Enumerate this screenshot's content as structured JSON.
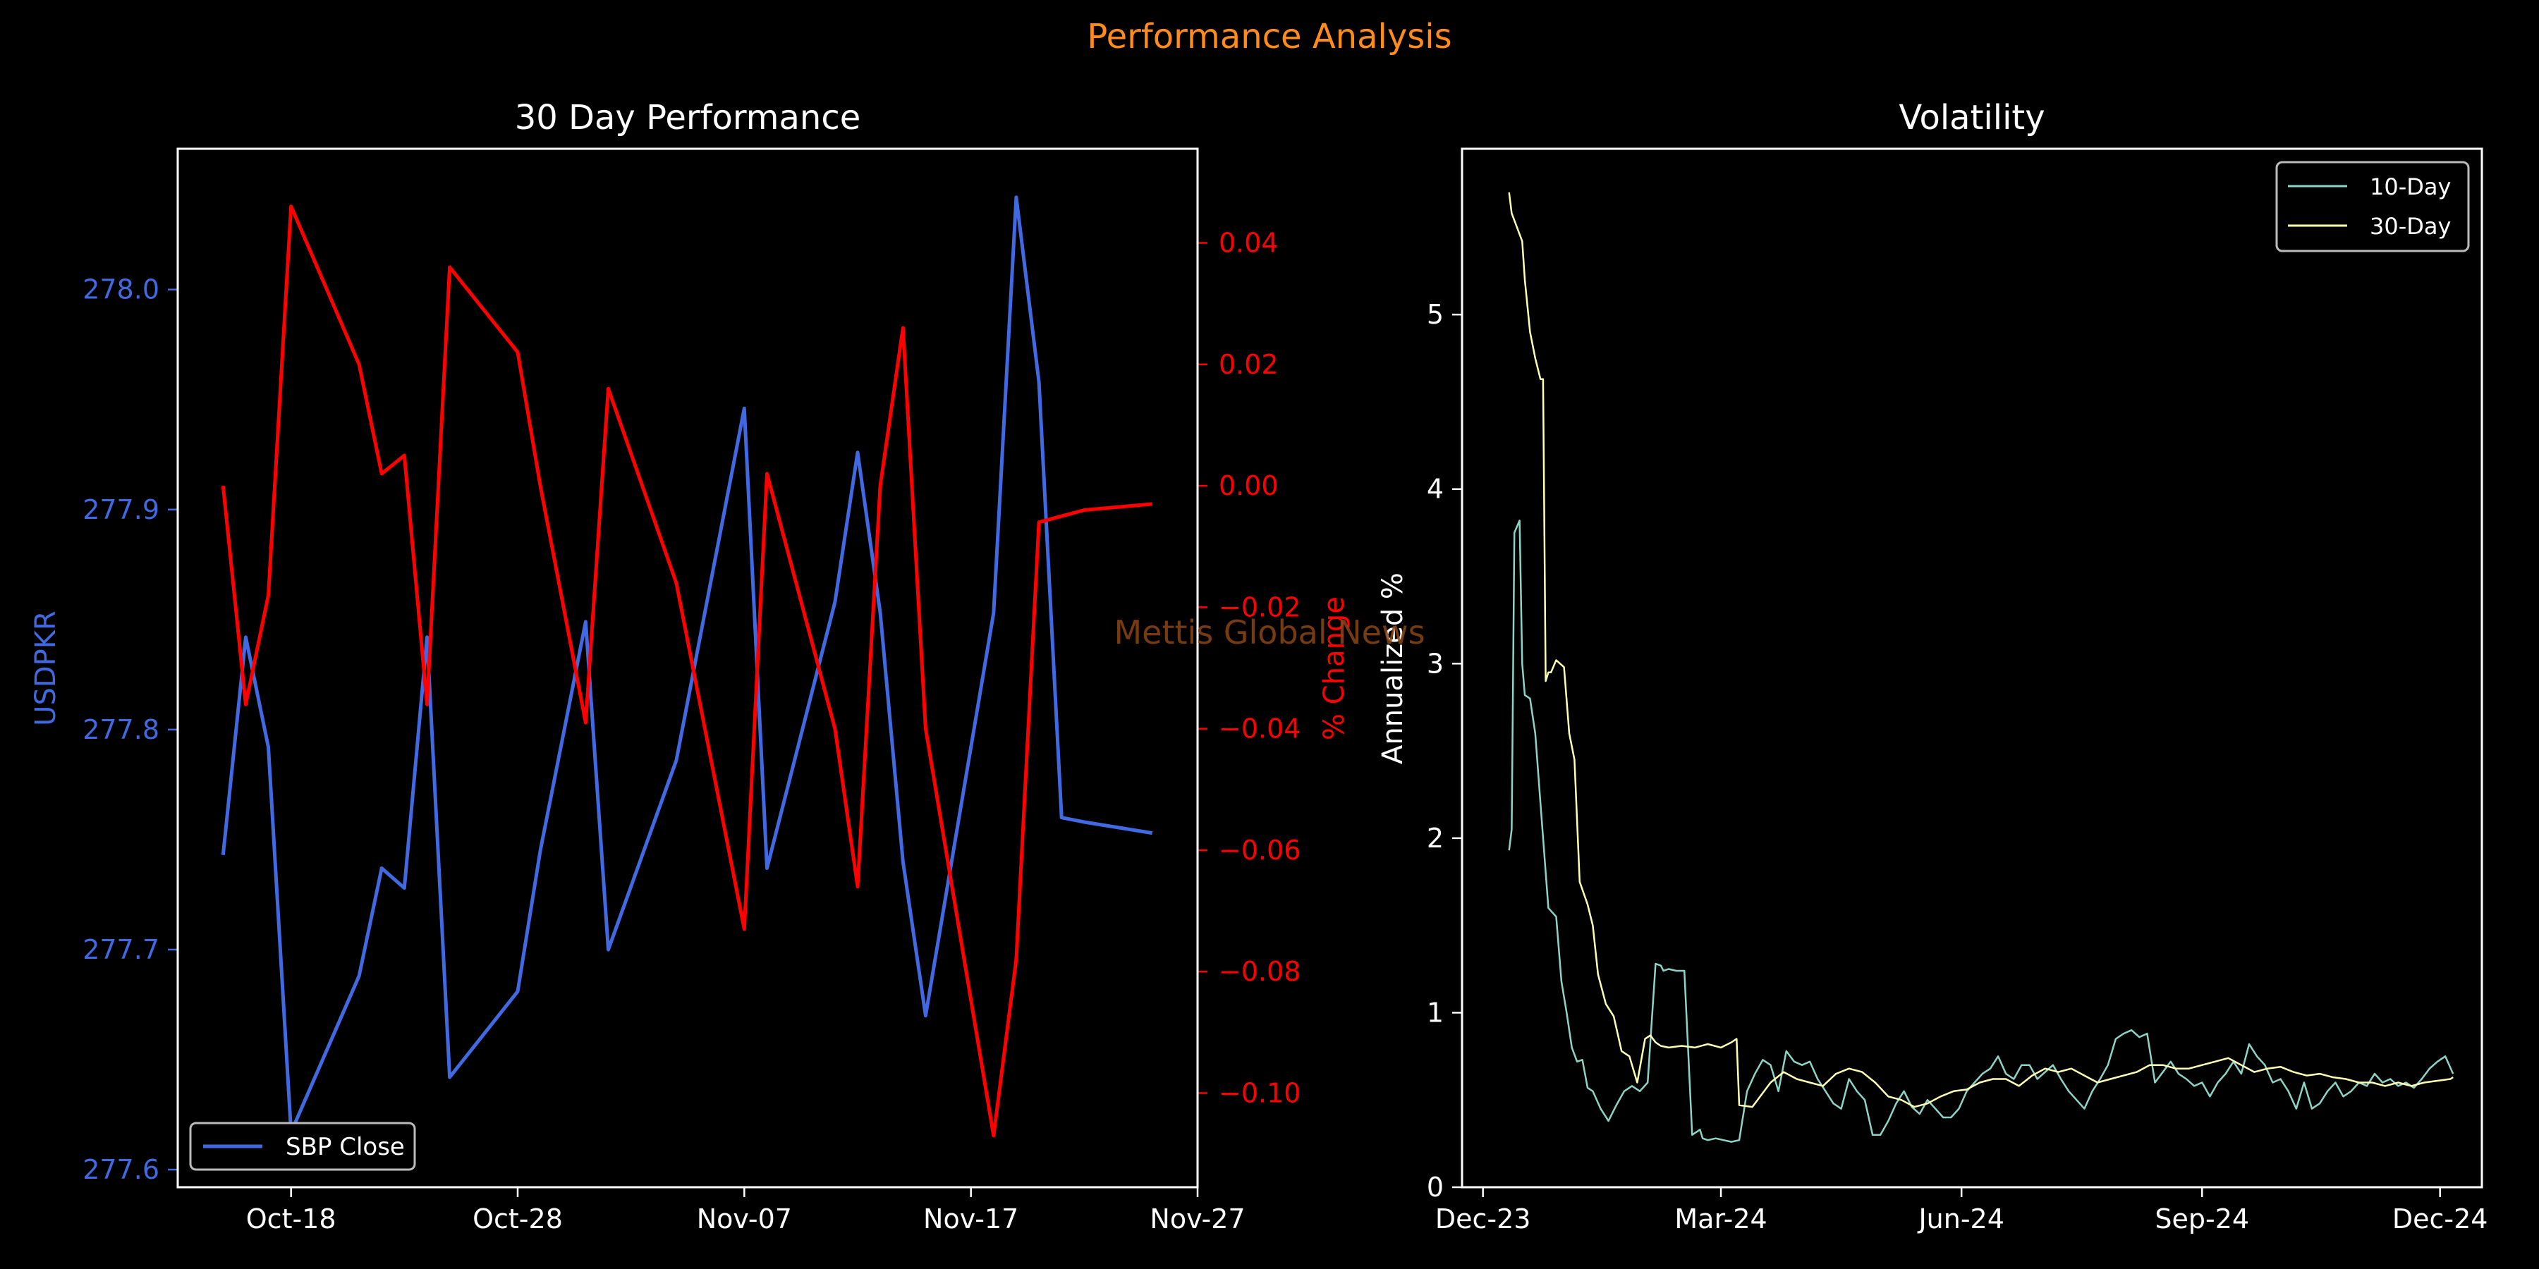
{
  "figure": {
    "suptitle": "Performance Analysis",
    "watermark": "Mettis Global News",
    "colors": {
      "background": "#000000",
      "suptitle": "#FF8C1A",
      "watermark": "#8B4513",
      "price": "#4169E1",
      "pct": "#FF0000",
      "vol10": "#8DD3C7",
      "vol30": "#FFFFB3",
      "axes": "#FFFFFF"
    }
  },
  "chart_data": [
    {
      "type": "line",
      "title": "30 Day Performance",
      "ylabel": "USDPKR",
      "y2label": "% Change",
      "x_ticks": [
        "Oct-18",
        "Oct-28",
        "Nov-07",
        "Nov-17",
        "Nov-27"
      ],
      "xlim": [
        "2024-10-13",
        "2024-11-27"
      ],
      "ylim": [
        277.592,
        278.064
      ],
      "y_ticks": [
        "277.6",
        "277.7",
        "277.8",
        "277.9",
        "278.0"
      ],
      "y2lim": [
        -0.1155,
        0.0555
      ],
      "y2_ticks": [
        "0.04",
        "0.02",
        "0.00",
        "−0.02",
        "−0.04",
        "−0.06",
        "−0.08",
        "−0.10"
      ],
      "legend": {
        "entries": [
          "SBP Close"
        ],
        "location": "lower-left"
      },
      "series": [
        {
          "name": "SBP Close",
          "axis": "left",
          "x": [
            "2024-10-15",
            "2024-10-16",
            "2024-10-17",
            "2024-10-18",
            "2024-10-21",
            "2024-10-22",
            "2024-10-23",
            "2024-10-24",
            "2024-10-25",
            "2024-10-28",
            "2024-10-29",
            "2024-10-31",
            "2024-11-01",
            "2024-11-04",
            "2024-11-07",
            "2024-11-08",
            "2024-11-11",
            "2024-11-12",
            "2024-11-13",
            "2024-11-14",
            "2024-11-15",
            "2024-11-18",
            "2024-11-19",
            "2024-11-20",
            "2024-11-21",
            "2024-11-22",
            "2024-11-25"
          ],
          "values": [
            277.743,
            277.842,
            277.792,
            277.617,
            277.688,
            277.737,
            277.728,
            277.842,
            277.642,
            277.681,
            277.745,
            277.849,
            277.7,
            277.786,
            277.946,
            277.737,
            277.858,
            277.926,
            277.853,
            277.74,
            277.67,
            277.853,
            278.042,
            277.958,
            277.76,
            277.758,
            277.753
          ]
        },
        {
          "name": "% Change",
          "axis": "right",
          "x": [
            "2024-10-15",
            "2024-10-16",
            "2024-10-17",
            "2024-10-18",
            "2024-10-21",
            "2024-10-22",
            "2024-10-23",
            "2024-10-24",
            "2024-10-25",
            "2024-10-28",
            "2024-10-29",
            "2024-10-31",
            "2024-11-01",
            "2024-11-04",
            "2024-11-07",
            "2024-11-08",
            "2024-11-11",
            "2024-11-12",
            "2024-11-13",
            "2024-11-14",
            "2024-11-15",
            "2024-11-18",
            "2024-11-19",
            "2024-11-20",
            "2024-11-21",
            "2024-11-22",
            "2024-11-25"
          ],
          "values": [
            0.0,
            -0.036,
            -0.018,
            0.046,
            0.02,
            0.002,
            0.005,
            -0.036,
            0.036,
            0.022,
            0.0,
            -0.039,
            0.016,
            -0.016,
            -0.073,
            0.002,
            -0.04,
            -0.066,
            0.0,
            0.026,
            -0.04,
            -0.107,
            -0.078,
            -0.006,
            -0.005,
            -0.004,
            -0.003
          ]
        }
      ]
    },
    {
      "type": "line",
      "title": "Volatility",
      "ylabel": "Annualized %",
      "x_ticks": [
        "Dec-23",
        "Mar-24",
        "Jun-24",
        "Sep-24",
        "Dec-24"
      ],
      "xlim": [
        "2023-11-23",
        "2024-12-17"
      ],
      "ylim": [
        0,
        5.95
      ],
      "y_ticks": [
        "0",
        "1",
        "2",
        "3",
        "4",
        "5"
      ],
      "legend": {
        "entries": [
          "10-Day",
          "30-Day"
        ],
        "location": "top-right"
      },
      "series": [
        {
          "name": "10-Day",
          "x": [
            "2023-12-11",
            "2023-12-12",
            "2023-12-13",
            "2023-12-15",
            "2023-12-16",
            "2023-12-17",
            "2023-12-19",
            "2023-12-21",
            "2023-12-23",
            "2023-12-26",
            "2023-12-29",
            "2023-12-31",
            "2024-01-02",
            "2024-01-04",
            "2024-01-06",
            "2024-01-08",
            "2024-01-10",
            "2024-01-12",
            "2024-01-15",
            "2024-01-18",
            "2024-01-21",
            "2024-01-24",
            "2024-01-27",
            "2024-01-30",
            "2024-02-02",
            "2024-02-05",
            "2024-02-07",
            "2024-02-08",
            "2024-02-10",
            "2024-02-13",
            "2024-02-16",
            "2024-02-19",
            "2024-02-22",
            "2024-02-23",
            "2024-02-25",
            "2024-02-28",
            "2024-03-02",
            "2024-03-05",
            "2024-03-08",
            "2024-03-11",
            "2024-03-14",
            "2024-03-17",
            "2024-03-20",
            "2024-03-23",
            "2024-03-26",
            "2024-03-29",
            "2024-04-01",
            "2024-04-04",
            "2024-04-07",
            "2024-04-10",
            "2024-04-13",
            "2024-04-16",
            "2024-04-19",
            "2024-04-22",
            "2024-04-25",
            "2024-04-28",
            "2024-05-01",
            "2024-05-04",
            "2024-05-07",
            "2024-05-10",
            "2024-05-13",
            "2024-05-16",
            "2024-05-19",
            "2024-05-22",
            "2024-05-25",
            "2024-05-28",
            "2024-05-31",
            "2024-06-03",
            "2024-06-06",
            "2024-06-09",
            "2024-06-12",
            "2024-06-15",
            "2024-06-18",
            "2024-06-21",
            "2024-06-24",
            "2024-06-27",
            "2024-06-30",
            "2024-07-03",
            "2024-07-06",
            "2024-07-09",
            "2024-07-12",
            "2024-07-15",
            "2024-07-18",
            "2024-07-21",
            "2024-07-24",
            "2024-07-27",
            "2024-07-30",
            "2024-08-02",
            "2024-08-05",
            "2024-08-08",
            "2024-08-11",
            "2024-08-14",
            "2024-08-17",
            "2024-08-20",
            "2024-08-23",
            "2024-08-26",
            "2024-08-29",
            "2024-09-01",
            "2024-09-04",
            "2024-09-07",
            "2024-09-10",
            "2024-09-13",
            "2024-09-16",
            "2024-09-19",
            "2024-09-22",
            "2024-09-25",
            "2024-09-28",
            "2024-10-01",
            "2024-10-04",
            "2024-10-07",
            "2024-10-10",
            "2024-10-13",
            "2024-10-16",
            "2024-10-19",
            "2024-10-22",
            "2024-10-25",
            "2024-10-28",
            "2024-10-31",
            "2024-11-03",
            "2024-11-06",
            "2024-11-09",
            "2024-11-12",
            "2024-11-15",
            "2024-11-18",
            "2024-11-21",
            "2024-11-24",
            "2024-11-27",
            "2024-11-30",
            "2024-12-03",
            "2024-12-06"
          ],
          "values": [
            1.93,
            2.05,
            3.75,
            3.82,
            3.0,
            2.82,
            2.8,
            2.6,
            2.2,
            1.6,
            1.55,
            1.18,
            1.0,
            0.8,
            0.72,
            0.73,
            0.57,
            0.55,
            0.45,
            0.38,
            0.47,
            0.55,
            0.58,
            0.55,
            0.6,
            1.28,
            1.27,
            1.24,
            1.25,
            1.24,
            1.24,
            0.3,
            0.33,
            0.28,
            0.27,
            0.28,
            0.27,
            0.26,
            0.27,
            0.55,
            0.65,
            0.73,
            0.7,
            0.55,
            0.78,
            0.72,
            0.7,
            0.72,
            0.62,
            0.55,
            0.48,
            0.45,
            0.62,
            0.55,
            0.5,
            0.3,
            0.3,
            0.38,
            0.48,
            0.55,
            0.46,
            0.42,
            0.5,
            0.45,
            0.4,
            0.4,
            0.45,
            0.55,
            0.6,
            0.65,
            0.68,
            0.75,
            0.65,
            0.62,
            0.7,
            0.7,
            0.62,
            0.66,
            0.7,
            0.62,
            0.55,
            0.5,
            0.45,
            0.55,
            0.62,
            0.7,
            0.85,
            0.88,
            0.9,
            0.86,
            0.88,
            0.6,
            0.66,
            0.72,
            0.65,
            0.62,
            0.58,
            0.6,
            0.52,
            0.6,
            0.65,
            0.72,
            0.65,
            0.82,
            0.75,
            0.7,
            0.6,
            0.62,
            0.55,
            0.45,
            0.6,
            0.45,
            0.48,
            0.55,
            0.6,
            0.52,
            0.55,
            0.6,
            0.58,
            0.65,
            0.6,
            0.62,
            0.58,
            0.6,
            0.57,
            0.62,
            0.68,
            0.72,
            0.75,
            0.65
          ],
          "line_color": "#8DD3C7"
        },
        {
          "name": "30-Day",
          "x": [
            "2023-12-11",
            "2023-12-12",
            "2023-12-14",
            "2023-12-16",
            "2023-12-17",
            "2023-12-19",
            "2023-12-21",
            "2023-12-23",
            "2023-12-24",
            "2023-12-25",
            "2023-12-26",
            "2023-12-27",
            "2023-12-29",
            "2024-01-01",
            "2024-01-03",
            "2024-01-05",
            "2024-01-07",
            "2024-01-10",
            "2024-01-12",
            "2024-01-14",
            "2024-01-17",
            "2024-01-20",
            "2024-01-23",
            "2024-01-26",
            "2024-01-29",
            "2024-02-01",
            "2024-02-03",
            "2024-02-05",
            "2024-02-07",
            "2024-02-10",
            "2024-02-15",
            "2024-02-20",
            "2024-02-25",
            "2024-03-01",
            "2024-03-05",
            "2024-03-07",
            "2024-03-08",
            "2024-03-13",
            "2024-03-18",
            "2024-03-20",
            "2024-03-25",
            "2024-03-30",
            "2024-04-04",
            "2024-04-09",
            "2024-04-14",
            "2024-04-19",
            "2024-04-24",
            "2024-04-29",
            "2024-05-04",
            "2024-05-09",
            "2024-05-14",
            "2024-05-19",
            "2024-05-24",
            "2024-05-29",
            "2024-06-03",
            "2024-06-08",
            "2024-06-13",
            "2024-06-18",
            "2024-06-23",
            "2024-06-28",
            "2024-07-03",
            "2024-07-08",
            "2024-07-13",
            "2024-07-18",
            "2024-07-23",
            "2024-07-28",
            "2024-08-02",
            "2024-08-07",
            "2024-08-12",
            "2024-08-17",
            "2024-08-22",
            "2024-08-27",
            "2024-09-01",
            "2024-09-06",
            "2024-09-11",
            "2024-09-16",
            "2024-09-21",
            "2024-09-26",
            "2024-10-01",
            "2024-10-06",
            "2024-10-11",
            "2024-10-16",
            "2024-10-21",
            "2024-10-26",
            "2024-10-31",
            "2024-11-05",
            "2024-11-10",
            "2024-11-15",
            "2024-11-20",
            "2024-11-25",
            "2024-11-30",
            "2024-12-05",
            "2024-12-06"
          ],
          "values": [
            5.7,
            5.58,
            5.5,
            5.42,
            5.2,
            4.9,
            4.75,
            4.63,
            4.63,
            2.9,
            2.95,
            2.95,
            3.02,
            2.98,
            2.6,
            2.45,
            1.75,
            1.62,
            1.5,
            1.22,
            1.05,
            0.98,
            0.78,
            0.75,
            0.6,
            0.85,
            0.87,
            0.83,
            0.81,
            0.8,
            0.81,
            0.8,
            0.82,
            0.8,
            0.83,
            0.85,
            0.47,
            0.46,
            0.56,
            0.6,
            0.66,
            0.62,
            0.6,
            0.58,
            0.65,
            0.68,
            0.66,
            0.6,
            0.52,
            0.5,
            0.46,
            0.48,
            0.52,
            0.55,
            0.56,
            0.6,
            0.62,
            0.62,
            0.58,
            0.64,
            0.68,
            0.66,
            0.68,
            0.64,
            0.6,
            0.62,
            0.64,
            0.66,
            0.7,
            0.7,
            0.68,
            0.68,
            0.7,
            0.72,
            0.74,
            0.7,
            0.66,
            0.68,
            0.69,
            0.66,
            0.64,
            0.65,
            0.63,
            0.62,
            0.6,
            0.6,
            0.58,
            0.6,
            0.58,
            0.6,
            0.61,
            0.62,
            0.63
          ],
          "line_color": "#FFFFB3"
        }
      ]
    }
  ]
}
